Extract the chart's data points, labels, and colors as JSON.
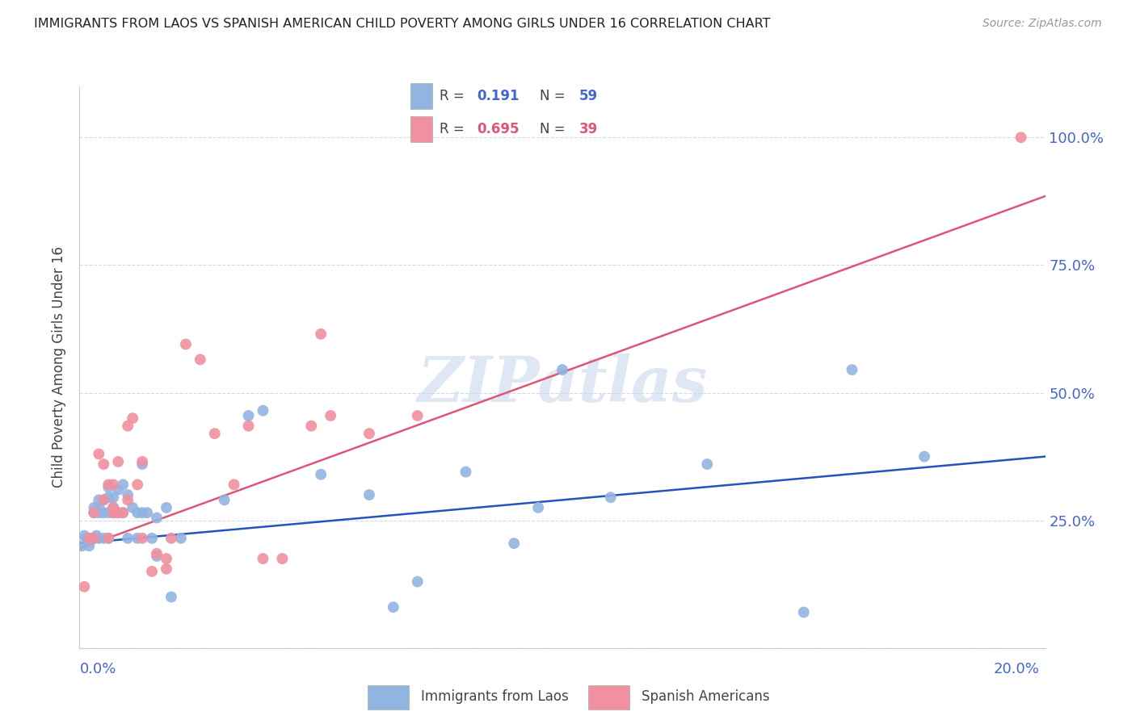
{
  "title": "IMMIGRANTS FROM LAOS VS SPANISH AMERICAN CHILD POVERTY AMONG GIRLS UNDER 16 CORRELATION CHART",
  "source": "Source: ZipAtlas.com",
  "ylabel": "Child Poverty Among Girls Under 16",
  "xlim": [
    0.0,
    0.2
  ],
  "ylim": [
    0.0,
    1.1
  ],
  "watermark": "ZIPatlas",
  "blue_color": "#92b4e0",
  "pink_color": "#f090a0",
  "blue_line_color": "#2255bb",
  "pink_line_color": "#dd5577",
  "background_color": "#ffffff",
  "grid_color": "#d8d8e8",
  "axis_label_color": "#4466cc",
  "title_color": "#222222",
  "source_color": "#999999",
  "yticks": [
    0.0,
    0.25,
    0.5,
    0.75,
    1.0
  ],
  "ytick_labels": [
    "",
    "25.0%",
    "50.0%",
    "75.0%",
    "100.0%"
  ],
  "blue_line_x": [
    0.0,
    0.2
  ],
  "blue_line_y": [
    0.205,
    0.375
  ],
  "pink_line_x": [
    0.0,
    0.2
  ],
  "pink_line_y": [
    0.195,
    0.885
  ],
  "blue_points_x": [
    0.0005,
    0.001,
    0.0015,
    0.002,
    0.002,
    0.0025,
    0.003,
    0.003,
    0.003,
    0.0035,
    0.004,
    0.004,
    0.004,
    0.004,
    0.005,
    0.005,
    0.005,
    0.006,
    0.006,
    0.006,
    0.006,
    0.007,
    0.007,
    0.007,
    0.008,
    0.008,
    0.009,
    0.009,
    0.01,
    0.01,
    0.011,
    0.012,
    0.012,
    0.013,
    0.013,
    0.014,
    0.015,
    0.016,
    0.016,
    0.018,
    0.019,
    0.021,
    0.03,
    0.035,
    0.038,
    0.05,
    0.06,
    0.065,
    0.07,
    0.08,
    0.09,
    0.095,
    0.1,
    0.11,
    0.13,
    0.15,
    0.16,
    0.175
  ],
  "blue_points_y": [
    0.2,
    0.22,
    0.215,
    0.2,
    0.215,
    0.215,
    0.215,
    0.265,
    0.275,
    0.22,
    0.215,
    0.265,
    0.275,
    0.29,
    0.215,
    0.265,
    0.29,
    0.215,
    0.265,
    0.295,
    0.315,
    0.265,
    0.275,
    0.295,
    0.265,
    0.31,
    0.265,
    0.32,
    0.215,
    0.3,
    0.275,
    0.215,
    0.265,
    0.265,
    0.36,
    0.265,
    0.215,
    0.18,
    0.255,
    0.275,
    0.1,
    0.215,
    0.29,
    0.455,
    0.465,
    0.34,
    0.3,
    0.08,
    0.13,
    0.345,
    0.205,
    0.275,
    0.545,
    0.295,
    0.36,
    0.07,
    0.545,
    0.375
  ],
  "pink_points_x": [
    0.001,
    0.002,
    0.003,
    0.003,
    0.004,
    0.005,
    0.005,
    0.006,
    0.006,
    0.007,
    0.007,
    0.007,
    0.008,
    0.008,
    0.009,
    0.01,
    0.01,
    0.011,
    0.012,
    0.013,
    0.013,
    0.015,
    0.016,
    0.018,
    0.018,
    0.019,
    0.022,
    0.025,
    0.028,
    0.032,
    0.035,
    0.038,
    0.042,
    0.048,
    0.05,
    0.052,
    0.06,
    0.07,
    0.195
  ],
  "pink_points_y": [
    0.12,
    0.215,
    0.265,
    0.215,
    0.38,
    0.29,
    0.36,
    0.215,
    0.32,
    0.265,
    0.275,
    0.32,
    0.265,
    0.365,
    0.265,
    0.29,
    0.435,
    0.45,
    0.32,
    0.215,
    0.365,
    0.15,
    0.185,
    0.155,
    0.175,
    0.215,
    0.595,
    0.565,
    0.42,
    0.32,
    0.435,
    0.175,
    0.175,
    0.435,
    0.615,
    0.455,
    0.42,
    0.455,
    1.0
  ]
}
